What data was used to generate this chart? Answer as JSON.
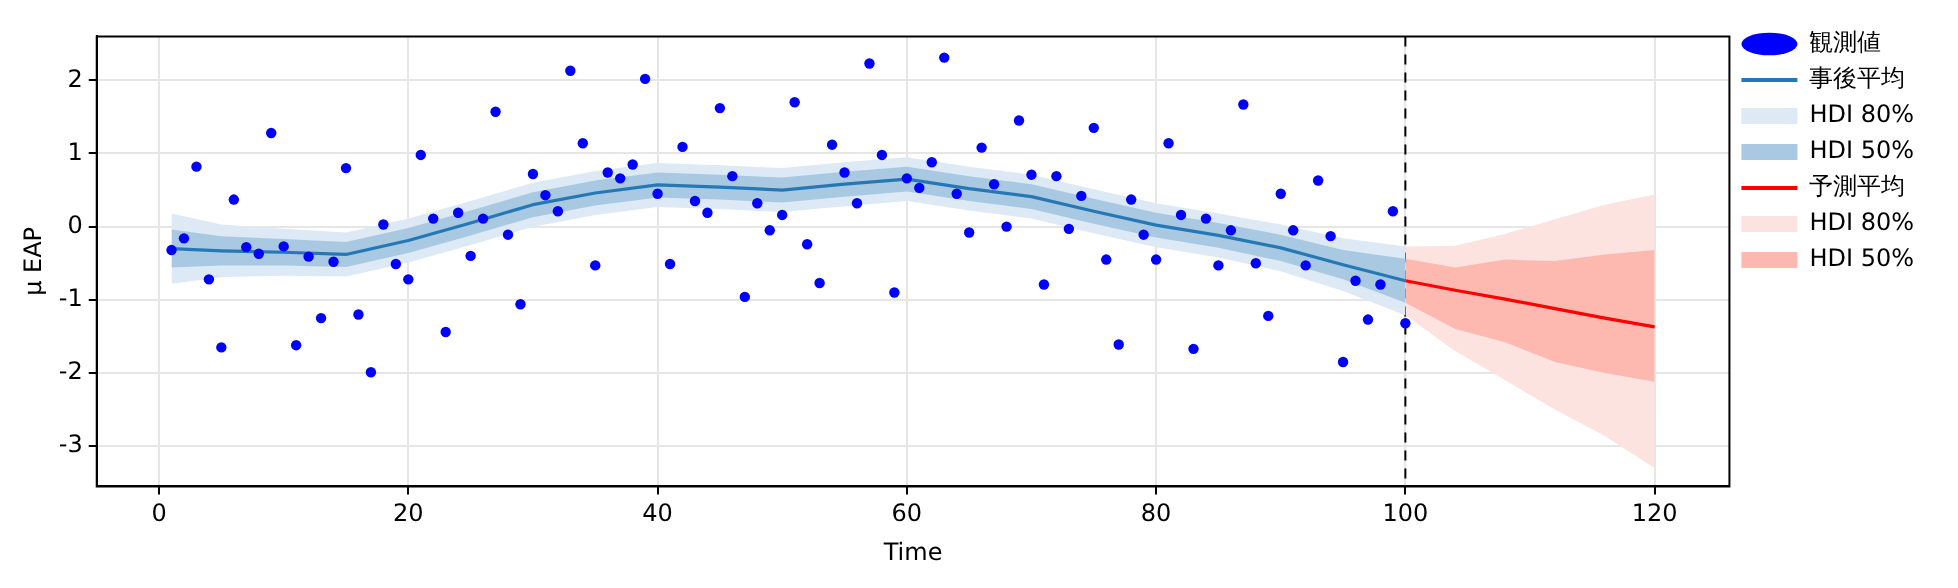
{
  "chart_data": {
    "type": "line",
    "xlabel": "Time",
    "ylabel": "μ EAP",
    "xlim": [
      -5,
      126
    ],
    "ylim": [
      -3.55,
      2.6
    ],
    "xticks": [
      0,
      20,
      40,
      60,
      80,
      100,
      120
    ],
    "yticks": [
      -3,
      -2,
      -1,
      0,
      1,
      2
    ],
    "grid": true,
    "legend": "top right",
    "ref_lines": [
      {
        "axis": "x",
        "value": 100,
        "color": "#000000",
        "line_style": "dashed"
      }
    ],
    "series": [
      {
        "type": "scatter",
        "name": "観測値",
        "color": "#0000ff",
        "marker": "circle",
        "x": [
          1,
          2,
          3,
          4,
          5,
          6,
          7,
          8,
          9,
          10,
          11,
          12,
          13,
          14,
          15,
          16,
          17,
          18,
          19,
          20,
          21,
          22,
          23,
          24,
          25,
          26,
          27,
          28,
          29,
          30,
          31,
          32,
          33,
          34,
          35,
          36,
          37,
          38,
          39,
          40,
          41,
          42,
          43,
          44,
          45,
          46,
          47,
          48,
          49,
          50,
          51,
          52,
          53,
          54,
          55,
          56,
          57,
          58,
          59,
          60,
          61,
          62,
          63,
          64,
          65,
          66,
          67,
          68,
          69,
          70,
          71,
          72,
          73,
          74,
          75,
          76,
          77,
          78,
          79,
          80,
          81,
          82,
          83,
          84,
          85,
          86,
          87,
          88,
          89,
          90,
          91,
          92,
          93,
          94,
          95,
          96,
          97,
          98,
          99,
          100
        ],
        "values": [
          -0.32,
          -0.16,
          0.82,
          -0.72,
          -1.65,
          0.37,
          -0.28,
          -0.37,
          1.28,
          -0.27,
          -1.62,
          -0.41,
          -1.25,
          -0.48,
          0.8,
          -1.2,
          -1.99,
          0.03,
          -0.51,
          -0.72,
          0.98,
          0.11,
          -1.44,
          0.19,
          -0.4,
          0.11,
          1.57,
          -0.11,
          -1.06,
          0.72,
          0.43,
          0.21,
          2.13,
          1.14,
          -0.53,
          0.74,
          0.66,
          0.85,
          2.02,
          0.45,
          -0.51,
          1.09,
          0.35,
          0.19,
          1.62,
          0.69,
          -0.96,
          0.32,
          -0.05,
          0.16,
          1.7,
          -0.24,
          -0.77,
          1.12,
          0.74,
          0.32,
          2.23,
          0.98,
          -0.9,
          0.66,
          0.53,
          0.88,
          2.31,
          0.45,
          -0.08,
          1.08,
          0.58,
          0,
          1.45,
          0.71,
          -0.79,
          0.69,
          -0.03,
          0.42,
          1.35,
          -0.45,
          -1.61,
          0.37,
          -0.11,
          -0.45,
          1.14,
          0.16,
          -1.67,
          0.11,
          -0.53,
          -0.05,
          1.67,
          -0.5,
          -1.22,
          0.45,
          -0.05,
          -0.53,
          0.63,
          -0.13,
          -1.85,
          -0.74,
          -1.27,
          -0.79,
          0.21,
          -1.32
        ]
      },
      {
        "type": "line",
        "name": "事後平均",
        "color": "#2678b5",
        "x": [
          1,
          5,
          10,
          15,
          20,
          25,
          30,
          35,
          40,
          45,
          50,
          55,
          60,
          65,
          70,
          75,
          80,
          85,
          90,
          95,
          100
        ],
        "values": [
          -0.3,
          -0.33,
          -0.35,
          -0.38,
          -0.19,
          0.05,
          0.3,
          0.46,
          0.57,
          0.54,
          0.5,
          0.58,
          0.65,
          0.52,
          0.41,
          0.21,
          0.02,
          -0.12,
          -0.29,
          -0.52,
          -0.74
        ]
      },
      {
        "type": "line",
        "name": "HDI 80%",
        "color": "#dde9f4",
        "x": [
          1,
          5,
          10,
          15,
          20,
          25,
          30,
          35,
          40,
          45,
          50,
          55,
          60,
          65,
          70,
          75,
          80,
          85,
          90,
          95,
          100
        ],
        "values": [
          null,
          null,
          null,
          null,
          null,
          null,
          null,
          null,
          null,
          null,
          null,
          null,
          null,
          null,
          null,
          null,
          null,
          null,
          null,
          null,
          null
        ],
        "lower": [
          -0.78,
          -0.69,
          -0.67,
          -0.68,
          -0.49,
          -0.25,
          0,
          0.16,
          0.27,
          0.24,
          0.2,
          0.28,
          0.35,
          0.22,
          0.11,
          -0.09,
          -0.28,
          -0.42,
          -0.61,
          -0.88,
          -1.21
        ],
        "upper": [
          0.18,
          0.03,
          -0.03,
          -0.08,
          0.11,
          0.35,
          0.6,
          0.76,
          0.87,
          0.84,
          0.8,
          0.88,
          0.95,
          0.82,
          0.71,
          0.51,
          0.32,
          0.18,
          0.03,
          -0.16,
          -0.27
        ]
      },
      {
        "type": "line",
        "name": "HDI 50%",
        "color": "#a9c9e3",
        "x": [
          1,
          5,
          10,
          15,
          20,
          25,
          30,
          35,
          40,
          45,
          50,
          55,
          60,
          65,
          70,
          75,
          80,
          85,
          90,
          95,
          100
        ],
        "values": [
          null,
          null,
          null,
          null,
          null,
          null,
          null,
          null,
          null,
          null,
          null,
          null,
          null,
          null,
          null,
          null,
          null,
          null,
          null,
          null,
          null
        ],
        "lower": [
          -0.56,
          -0.53,
          -0.53,
          -0.55,
          -0.36,
          -0.12,
          0.13,
          0.29,
          0.4,
          0.37,
          0.33,
          0.41,
          0.48,
          0.35,
          0.24,
          0.04,
          -0.15,
          -0.29,
          -0.47,
          -0.72,
          -1.04
        ],
        "upper": [
          -0.04,
          -0.13,
          -0.17,
          -0.21,
          -0.02,
          0.22,
          0.47,
          0.63,
          0.74,
          0.71,
          0.67,
          0.75,
          0.82,
          0.69,
          0.58,
          0.38,
          0.19,
          0.05,
          -0.11,
          -0.32,
          -0.44
        ]
      },
      {
        "type": "line",
        "name": "予測平均",
        "color": "#ff0000",
        "x": [
          100,
          104,
          108,
          112,
          116,
          120
        ],
        "values": [
          -0.74,
          -0.87,
          -0.99,
          -1.12,
          -1.25,
          -1.37
        ]
      },
      {
        "type": "line",
        "name": "HDI 80%",
        "color": "#fde3e0",
        "x": [
          100,
          104,
          108,
          112,
          116,
          120
        ],
        "values": [
          null,
          null,
          null,
          null,
          null,
          null
        ],
        "lower": [
          -1.21,
          -1.7,
          -2.1,
          -2.5,
          -2.86,
          -3.3
        ],
        "upper": [
          -0.27,
          -0.26,
          -0.1,
          0.1,
          0.3,
          0.44
        ]
      },
      {
        "type": "line",
        "name": "HDI 50%",
        "color": "#fdb9b0",
        "x": [
          100,
          104,
          108,
          112,
          116,
          120
        ],
        "values": [
          null,
          null,
          null,
          null,
          null,
          null
        ],
        "lower": [
          -1.04,
          -1.4,
          -1.58,
          -1.85,
          -2.0,
          -2.12
        ],
        "upper": [
          -0.44,
          -0.56,
          -0.45,
          -0.47,
          -0.38,
          -0.32
        ]
      }
    ]
  }
}
